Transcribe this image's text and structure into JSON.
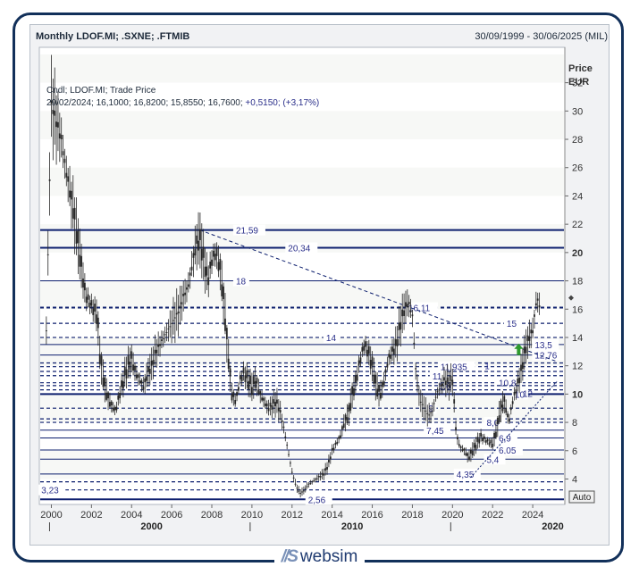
{
  "header": {
    "title": "Monthly LDOF.MI; .SXNE; .FTMIB",
    "date_range": "30/09/1999 - 30/06/2025 (MIL)"
  },
  "legend": {
    "line1": "Cndl; LDOF.MI; Trade Price",
    "line2_prefix": "29/02/2024; 16,1000; 16,8200; 15,8550; 16,7600; ",
    "line2_change": "+0,5150; (+3,17%)"
  },
  "axis": {
    "price_label": "Price",
    "currency_label": "EUR",
    "auto_button": "Auto"
  },
  "brand": {
    "name": "websim",
    "mark": "//S"
  },
  "colors": {
    "navy": "#0d1f6e",
    "bar": "#262626",
    "up_arrow": "#2e9a2e",
    "label": "#2a2f8a"
  },
  "chart_data": {
    "type": "candlestick",
    "title": "Monthly LDOF.MI; .SXNE; .FTMIB",
    "ylabel": "Price EUR",
    "ylim": [
      2.2,
      34.5
    ],
    "xlim": [
      1999.4,
      2025.6
    ],
    "y_ticks": [
      4,
      6,
      8,
      10,
      12,
      14,
      16,
      18,
      20,
      22,
      24,
      26,
      28,
      30,
      32
    ],
    "y_tick_labels": [
      "4",
      "6",
      "8",
      "10",
      "12",
      "14",
      "16",
      "18",
      "20",
      "22",
      "24",
      "26",
      "28",
      "30",
      "32"
    ],
    "y_bold_ticks": [
      10,
      20
    ],
    "x_ticks": [
      2000,
      2002,
      2004,
      2006,
      2008,
      2010,
      2012,
      2014,
      2016,
      2018,
      2020,
      2022,
      2024
    ],
    "x_tick_labels": [
      "2000",
      "2002",
      "2004",
      "2006",
      "2008",
      "2010",
      "2012",
      "2014",
      "2016",
      "2018",
      "2020",
      "2022",
      "2024"
    ],
    "x_decades": [
      {
        "x": 2000,
        "label": "2000"
      },
      {
        "x": 2010,
        "label": "2010"
      },
      {
        "x": 2020,
        "label": "2020"
      }
    ],
    "price_path": [
      [
        1999.75,
        14.5
      ],
      [
        2000.0,
        30.5
      ],
      [
        2000.2,
        29.5
      ],
      [
        2000.5,
        28.0
      ],
      [
        2000.7,
        26.0
      ],
      [
        2000.9,
        24.5
      ],
      [
        2001.1,
        23.0
      ],
      [
        2001.3,
        21.0
      ],
      [
        2001.5,
        19.0
      ],
      [
        2001.7,
        17.0
      ],
      [
        2001.9,
        16.5
      ],
      [
        2002.1,
        16.0
      ],
      [
        2002.3,
        15.5
      ],
      [
        2002.4,
        13.0
      ],
      [
        2002.6,
        11.0
      ],
      [
        2002.8,
        9.8
      ],
      [
        2003.0,
        9.2
      ],
      [
        2003.2,
        8.8
      ],
      [
        2003.4,
        10.0
      ],
      [
        2003.6,
        11.0
      ],
      [
        2003.8,
        12.0
      ],
      [
        2004.0,
        12.5
      ],
      [
        2004.2,
        11.5
      ],
      [
        2004.4,
        11.0
      ],
      [
        2004.6,
        10.5
      ],
      [
        2004.8,
        11.5
      ],
      [
        2005.0,
        12.0
      ],
      [
        2005.2,
        13.0
      ],
      [
        2005.4,
        13.5
      ],
      [
        2005.6,
        14.0
      ],
      [
        2005.8,
        14.5
      ],
      [
        2006.0,
        15.0
      ],
      [
        2006.2,
        15.5
      ],
      [
        2006.4,
        16.0
      ],
      [
        2006.6,
        17.0
      ],
      [
        2006.8,
        17.5
      ],
      [
        2007.0,
        19.0
      ],
      [
        2007.2,
        20.5
      ],
      [
        2007.4,
        21.0
      ],
      [
        2007.6,
        19.5
      ],
      [
        2007.8,
        18.0
      ],
      [
        2008.0,
        19.5
      ],
      [
        2008.2,
        20.0
      ],
      [
        2008.4,
        19.0
      ],
      [
        2008.6,
        16.5
      ],
      [
        2008.8,
        13.0
      ],
      [
        2009.0,
        10.0
      ],
      [
        2009.2,
        9.5
      ],
      [
        2009.4,
        11.0
      ],
      [
        2009.6,
        11.5
      ],
      [
        2009.8,
        11.0
      ],
      [
        2010.0,
        10.5
      ],
      [
        2010.2,
        11.0
      ],
      [
        2010.4,
        10.0
      ],
      [
        2010.6,
        9.5
      ],
      [
        2010.8,
        9.0
      ],
      [
        2011.0,
        9.2
      ],
      [
        2011.2,
        9.5
      ],
      [
        2011.4,
        8.8
      ],
      [
        2011.6,
        7.5
      ],
      [
        2011.8,
        6.0
      ],
      [
        2012.0,
        4.5
      ],
      [
        2012.2,
        3.5
      ],
      [
        2012.4,
        3.0
      ],
      [
        2012.6,
        3.2
      ],
      [
        2012.8,
        3.6
      ],
      [
        2013.0,
        3.8
      ],
      [
        2013.2,
        4.0
      ],
      [
        2013.4,
        4.2
      ],
      [
        2013.6,
        4.4
      ],
      [
        2013.8,
        5.0
      ],
      [
        2014.0,
        6.0
      ],
      [
        2014.2,
        6.5
      ],
      [
        2014.4,
        7.0
      ],
      [
        2014.6,
        8.0
      ],
      [
        2014.8,
        8.5
      ],
      [
        2015.0,
        10.0
      ],
      [
        2015.2,
        11.0
      ],
      [
        2015.4,
        12.5
      ],
      [
        2015.6,
        13.5
      ],
      [
        2015.8,
        13.0
      ],
      [
        2016.0,
        12.0
      ],
      [
        2016.2,
        10.5
      ],
      [
        2016.4,
        10.0
      ],
      [
        2016.6,
        11.0
      ],
      [
        2016.8,
        12.5
      ],
      [
        2017.0,
        13.0
      ],
      [
        2017.2,
        13.5
      ],
      [
        2017.4,
        15.0
      ],
      [
        2017.6,
        16.0
      ],
      [
        2017.8,
        16.5
      ],
      [
        2018.0,
        15.5
      ],
      [
        2018.2,
        11.0
      ],
      [
        2018.4,
        9.5
      ],
      [
        2018.6,
        9.0
      ],
      [
        2018.8,
        8.5
      ],
      [
        2019.0,
        8.8
      ],
      [
        2019.2,
        10.0
      ],
      [
        2019.4,
        10.5
      ],
      [
        2019.6,
        11.0
      ],
      [
        2019.8,
        10.8
      ],
      [
        2020.0,
        11.0
      ],
      [
        2020.2,
        7.0
      ],
      [
        2020.4,
        6.2
      ],
      [
        2020.6,
        6.0
      ],
      [
        2020.8,
        5.5
      ],
      [
        2021.0,
        6.0
      ],
      [
        2021.2,
        6.5
      ],
      [
        2021.4,
        7.0
      ],
      [
        2021.6,
        6.8
      ],
      [
        2021.8,
        6.6
      ],
      [
        2022.0,
        6.5
      ],
      [
        2022.2,
        7.5
      ],
      [
        2022.4,
        9.0
      ],
      [
        2022.6,
        9.5
      ],
      [
        2022.8,
        8.0
      ],
      [
        2023.0,
        9.5
      ],
      [
        2023.2,
        10.5
      ],
      [
        2023.4,
        11.5
      ],
      [
        2023.6,
        13.0
      ],
      [
        2023.8,
        14.0
      ],
      [
        2024.0,
        14.5
      ],
      [
        2024.2,
        16.8
      ],
      [
        2024.4,
        16.0
      ]
    ],
    "horizontal_levels": [
      {
        "value": 21.59,
        "label": "21,59",
        "style": "solid-thick",
        "label_x": 2009.2
      },
      {
        "value": 20.34,
        "label": "20,34",
        "style": "solid-thick",
        "label_x": 2011.8
      },
      {
        "value": 18,
        "label": "18",
        "style": "solid",
        "label_x": 2009.2
      },
      {
        "value": 16.11,
        "label": "16,11",
        "style": "dashed-thick",
        "label_x": 2017.8
      },
      {
        "value": 15,
        "label": "15",
        "style": "dashed",
        "label_x": 2022.7
      },
      {
        "value": 14,
        "label": "14",
        "style": "dashed",
        "label_x": 2013.7
      },
      {
        "value": 13.5,
        "label": "13,5",
        "style": "solid",
        "label_x": 2024.1
      },
      {
        "value": 12.76,
        "label": "12,76",
        "style": "solid",
        "label_x": 2024.1
      },
      {
        "value": 12.2,
        "label": "",
        "style": "dashed",
        "label_x": null
      },
      {
        "value": 11.935,
        "label": "11,935",
        "style": "dashed",
        "label_x": 2019.4
      },
      {
        "value": 11.6,
        "label": "",
        "style": "dashed",
        "label_x": null
      },
      {
        "value": 11.3,
        "label": "11",
        "style": "dashed",
        "label_x": 2019.0
      },
      {
        "value": 10.8,
        "label": "10,8",
        "style": "dashed",
        "label_x": 2022.3
      },
      {
        "value": 10.6,
        "label": "",
        "style": "dashed",
        "label_x": null
      },
      {
        "value": 10.3,
        "label": "",
        "style": "dashed",
        "label_x": null
      },
      {
        "value": 10.0,
        "label": "10",
        "style": "solid-thick",
        "label_x": 2023.1
      },
      {
        "value": 9.0,
        "label": "9",
        "style": "dashed",
        "label_x": 2018.8
      },
      {
        "value": 8.25,
        "label": "",
        "style": "dashed",
        "label_x": null
      },
      {
        "value": 8.0,
        "label": "8,0",
        "style": "dashed",
        "label_x": 2021.7
      },
      {
        "value": 7.45,
        "label": "7,45",
        "style": "solid",
        "label_x": 2018.7
      },
      {
        "value": 6.9,
        "label": "6,9",
        "style": "solid",
        "label_x": 2022.3
      },
      {
        "value": 6.05,
        "label": "6,05",
        "style": "solid",
        "label_x": 2022.3
      },
      {
        "value": 5.4,
        "label": "5,4",
        "style": "solid",
        "label_x": 2021.7
      },
      {
        "value": 4.35,
        "label": "4,35",
        "style": "solid",
        "label_x": 2020.2
      },
      {
        "value": 3.8,
        "label": "",
        "style": "dashed",
        "label_x": null
      },
      {
        "value": 3.23,
        "label": "3,23",
        "style": "dashed",
        "label_x": 1999.5
      },
      {
        "value": 2.56,
        "label": "2,56",
        "style": "solid-thick",
        "label_x": 2012.8
      }
    ],
    "extra_labels": [
      {
        "x": 2021.6,
        "y": 12.0,
        "text": "1"
      },
      {
        "x": 2019.3,
        "y": 10.6,
        "text": "1,6"
      },
      {
        "x": 2023.5,
        "y": 10.05,
        "text": "12"
      }
    ],
    "trend_lines": [
      {
        "x1": 2007.4,
        "y1": 21.59,
        "x2": 2025.2,
        "y2": 12.3,
        "style": "dashed"
      },
      {
        "x1": 2020.9,
        "y1": 4.1,
        "x2": 2025.2,
        "y2": 10.9,
        "style": "dotted"
      }
    ],
    "up_arrow": {
      "x": 2023.3,
      "y": 13.0
    },
    "last_marker": {
      "x": 2024.6,
      "y": 16.8
    }
  }
}
